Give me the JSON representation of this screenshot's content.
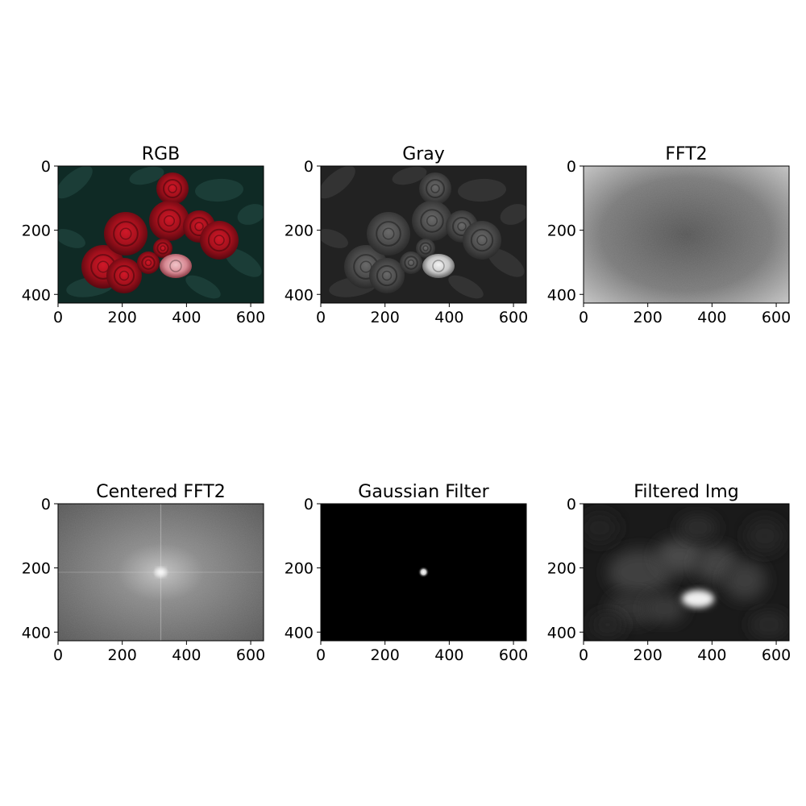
{
  "chart_data": [
    {
      "type": "image",
      "title": "RGB",
      "xticks": [
        "0",
        "200",
        "400",
        "600"
      ],
      "yticks": [
        "0",
        "200",
        "400"
      ],
      "xlim": [
        0,
        640
      ],
      "ylim": [
        427,
        0
      ],
      "colors": {
        "background": "#0f2a25",
        "rose": "#a3101c",
        "highlight": "#e0a0a8"
      }
    },
    {
      "type": "image",
      "title": "Gray",
      "xticks": [
        "0",
        "200",
        "400",
        "600"
      ],
      "yticks": [
        "0",
        "200",
        "400"
      ],
      "xlim": [
        0,
        640
      ],
      "ylim": [
        427,
        0
      ],
      "colors": {
        "background": "#222222",
        "rose": "#474747",
        "highlight": "#d2d2d2"
      }
    },
    {
      "type": "image",
      "title": "FFT2",
      "xticks": [
        "0",
        "200",
        "400",
        "600"
      ],
      "yticks": [
        "0",
        "200",
        "400"
      ],
      "xlim": [
        0,
        640
      ],
      "ylim": [
        427,
        0
      ],
      "colors": {
        "center": "#555555",
        "corner": "#c8c8c8"
      }
    },
    {
      "type": "image",
      "title": "Centered FFT2",
      "xticks": [
        "0",
        "200",
        "400",
        "600"
      ],
      "yticks": [
        "0",
        "200",
        "400"
      ],
      "xlim": [
        0,
        640
      ],
      "ylim": [
        427,
        0
      ],
      "colors": {
        "center": "#e8e8e8",
        "edge": "#5a5a5a"
      }
    },
    {
      "type": "image",
      "title": "Gaussian Filter",
      "xticks": [
        "0",
        "200",
        "400",
        "600"
      ],
      "yticks": [
        "0",
        "200",
        "400"
      ],
      "xlim": [
        0,
        640
      ],
      "ylim": [
        427,
        0
      ],
      "colors": {
        "background": "#000000",
        "peak": "#ffffff"
      },
      "peak": {
        "x": 320,
        "y": 213
      }
    },
    {
      "type": "image",
      "title": "Filtered Img",
      "xticks": [
        "0",
        "200",
        "400",
        "600"
      ],
      "yticks": [
        "0",
        "200",
        "400"
      ],
      "xlim": [
        0,
        640
      ],
      "ylim": [
        427,
        0
      ],
      "colors": {
        "background": "#1a1a1a",
        "blob": "#4a4a4a",
        "highlight": "#f0f0f0"
      }
    }
  ]
}
